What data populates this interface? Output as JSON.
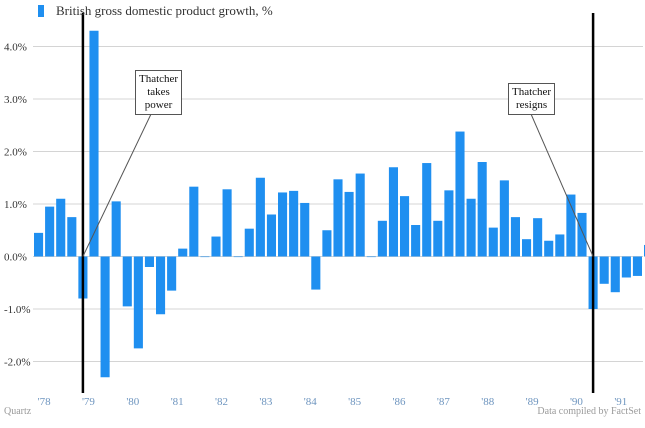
{
  "legend": {
    "label": "British gross domestic product growth, %"
  },
  "footer": {
    "source": "Quartz",
    "credit": "Data compiled by FactSet"
  },
  "colors": {
    "bar": "#1f8ff0",
    "grid": "#d4d4d4",
    "axis_text": "#6e95bf",
    "ylabel_text": "#333333",
    "marker": "#000000"
  },
  "annotations": [
    {
      "label_lines": [
        "Thatcher",
        "takes",
        "power"
      ]
    },
    {
      "label_lines": [
        "Thatcher",
        "resigns"
      ]
    }
  ],
  "chart_data": {
    "type": "bar",
    "title": "British gross domestic product growth, %",
    "xlabel": "",
    "ylabel": "",
    "ylim": [
      -2.6,
      4.6
    ],
    "yticks": [
      -2.0,
      -1.0,
      0.0,
      1.0,
      2.0,
      3.0,
      4.0
    ],
    "ytick_labels": [
      "-2.0%",
      "-1.0%",
      "0.0%",
      "1.0%",
      "2.0%",
      "3.0%",
      "4.0%"
    ],
    "xlim": [
      1977.875,
      1991.625
    ],
    "xticks": [
      1978,
      1979,
      1980,
      1981,
      1982,
      1983,
      1984,
      1985,
      1986,
      1987,
      1988,
      1989,
      1990,
      1991
    ],
    "xtick_labels": [
      "'78",
      "'79",
      "'80",
      "'81",
      "'82",
      "'83",
      "'84",
      "'85",
      "'86",
      "'87",
      "'88",
      "'89",
      "'90",
      "'91"
    ],
    "x_start": 1977.875,
    "x_step": 0.25,
    "values": [
      0.45,
      0.95,
      1.1,
      0.75,
      -0.8,
      4.3,
      -2.3,
      1.05,
      -0.95,
      -1.75,
      -0.2,
      -1.1,
      -0.65,
      0.15,
      1.33,
      0.0,
      0.38,
      1.28,
      0.0,
      0.53,
      1.5,
      0.8,
      1.22,
      1.25,
      1.02,
      -0.63,
      0.5,
      1.47,
      1.23,
      1.58,
      0.0,
      0.68,
      1.7,
      1.15,
      0.6,
      1.78,
      0.68,
      1.26,
      2.38,
      1.1,
      1.8,
      0.55,
      1.45,
      0.75,
      0.33,
      0.73,
      0.3,
      0.42,
      1.18,
      0.83,
      -1.0,
      -0.52,
      -0.68,
      -0.4,
      -0.37,
      0.22
    ],
    "events": [
      {
        "label": "Thatcher takes power",
        "x": 1979.0
      },
      {
        "label": "Thatcher resigns",
        "x": 1990.5
      }
    ]
  }
}
